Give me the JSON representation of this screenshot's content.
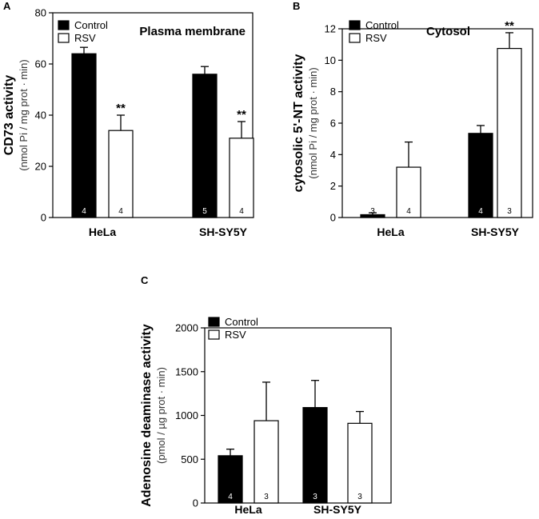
{
  "chart_data": [
    {
      "type": "bar",
      "panel": "A",
      "title": "Plasma membrane",
      "ylabel": "CD73 activity",
      "ylabel_sub": "(nmol Pi / mg prot · min)",
      "categories": [
        "HeLa",
        "SH-SY5Y"
      ],
      "ylim": [
        0,
        80
      ],
      "yticks": [
        0,
        20,
        40,
        60,
        80
      ],
      "legend_position": "top-left",
      "series": [
        {
          "name": "Control",
          "color": "#000000",
          "values": [
            64,
            56
          ],
          "errors": [
            2.5,
            3
          ],
          "n": [
            "4",
            "5"
          ],
          "sig": [
            "",
            ""
          ]
        },
        {
          "name": "RSV",
          "color": "#ffffff",
          "values": [
            34,
            31
          ],
          "errors": [
            6,
            6.5
          ],
          "n": [
            "4",
            "4"
          ],
          "sig": [
            "**",
            "**"
          ]
        }
      ]
    },
    {
      "type": "bar",
      "panel": "B",
      "title": "Cytosol",
      "ylabel": "cytosolic 5'-NT activity",
      "ylabel_sub": "(nmol Pi / mg prot · min)",
      "categories": [
        "HeLa",
        "SH-SY5Y"
      ],
      "ylim": [
        0,
        12
      ],
      "yticks": [
        0,
        2,
        4,
        6,
        8,
        10,
        12
      ],
      "legend_position": "top-left",
      "series": [
        {
          "name": "Control",
          "color": "#000000",
          "values": [
            0.18,
            5.35
          ],
          "errors": [
            0.12,
            0.5
          ],
          "n": [
            "3",
            "4"
          ],
          "sig": [
            "",
            ""
          ]
        },
        {
          "name": "RSV",
          "color": "#ffffff",
          "values": [
            3.2,
            10.75
          ],
          "errors": [
            1.6,
            1.0
          ],
          "n": [
            "4",
            "3"
          ],
          "sig": [
            "",
            "**"
          ]
        }
      ]
    },
    {
      "type": "bar",
      "panel": "C",
      "title": "",
      "ylabel": "Adenosine deaminase activity",
      "ylabel_sub": "(pmol / µg prot · min)",
      "categories": [
        "HeLa",
        "SH-SY5Y"
      ],
      "ylim": [
        0,
        2000
      ],
      "yticks": [
        0,
        500,
        1000,
        1500,
        2000
      ],
      "legend_position": "top-left",
      "series": [
        {
          "name": "Control",
          "color": "#000000",
          "values": [
            540,
            1090
          ],
          "errors": [
            75,
            310
          ],
          "n": [
            "4",
            "3"
          ],
          "sig": [
            "",
            ""
          ]
        },
        {
          "name": "RSV",
          "color": "#ffffff",
          "values": [
            940,
            910
          ],
          "errors": [
            440,
            135
          ],
          "n": [
            "3",
            "3"
          ],
          "sig": [
            "",
            ""
          ]
        }
      ]
    }
  ]
}
